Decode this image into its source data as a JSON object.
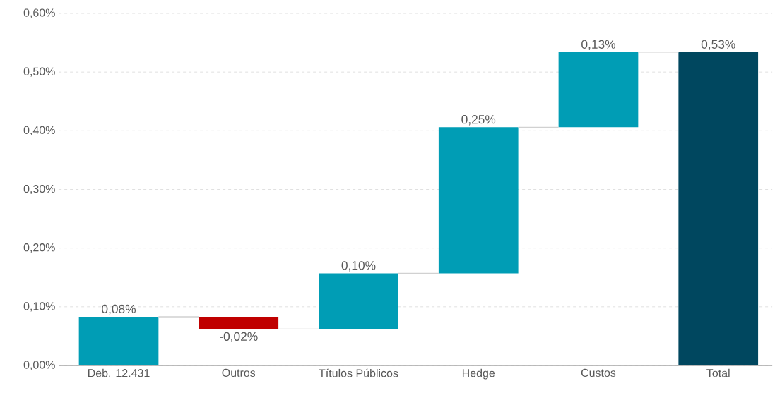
{
  "chart_data": {
    "type": "bar",
    "categories": [
      "Deb. 12.431",
      "Outros",
      "Títulos Públicos",
      "Hedge",
      "Custos",
      "Total"
    ],
    "values": [
      0.083,
      -0.021,
      0.095,
      0.249,
      0.128,
      0.534
    ],
    "base": [
      0,
      0.083,
      0.062,
      0.157,
      0.406,
      0
    ],
    "colors": [
      "#009db5",
      "#c00000",
      "#009db5",
      "#009db5",
      "#009db5",
      "#00475f"
    ],
    "value_labels": [
      "0,08%",
      "-0,02%",
      "0,10%",
      "0,25%",
      "0,13%",
      "0,53%"
    ],
    "ylim": [
      0,
      0.6
    ],
    "yticks": [
      {
        "value": 0,
        "label": "0,00%"
      },
      {
        "value": 0.1,
        "label": "0,10%"
      },
      {
        "value": 0.2,
        "label": "0,20%"
      },
      {
        "value": 0.3,
        "label": "0,30%"
      },
      {
        "value": 0.4,
        "label": "0,40%"
      },
      {
        "value": 0.5,
        "label": "0,50%"
      },
      {
        "value": 0.6,
        "label": "0,60%"
      }
    ],
    "grid": "y"
  }
}
